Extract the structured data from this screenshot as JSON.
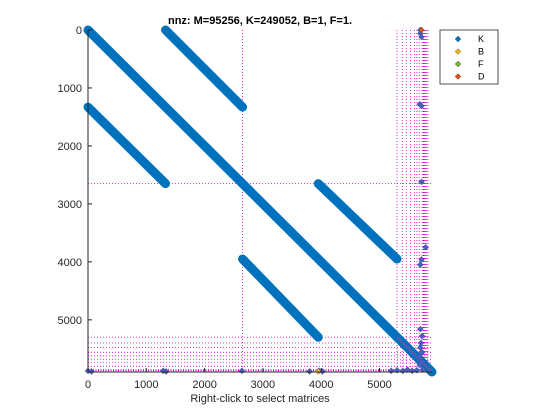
{
  "chart_data": {
    "type": "scatter",
    "title": "nnz: M=95256, K=249052, B=1, F=1.",
    "xlabel": "Right-click to select matrices",
    "ylabel": "",
    "xlim": [
      0,
      5900
    ],
    "ylim": [
      5900,
      0
    ],
    "y_axis_reversed": true,
    "xticks": [
      0,
      1000,
      2000,
      3000,
      4000,
      5000
    ],
    "yticks": [
      0,
      1000,
      2000,
      3000,
      4000,
      5000
    ],
    "grid": false,
    "legend_position": "top-right",
    "legend": [
      {
        "name": "K",
        "color": "#0072BD",
        "marker": "diamond"
      },
      {
        "name": "B",
        "color": "#EDB120",
        "marker": "diamond"
      },
      {
        "name": "F",
        "color": "#77AC30",
        "marker": "diamond"
      },
      {
        "name": "D",
        "color": "#D95319",
        "marker": "diamond"
      }
    ],
    "guide_color": "#CC00CC",
    "bands": [
      {
        "x": [
          0,
          2650
        ],
        "y": [
          0,
          2650
        ]
      },
      {
        "x": [
          1330,
          2650
        ],
        "y": [
          0,
          1330
        ]
      },
      {
        "x": [
          0,
          1330
        ],
        "y": [
          1330,
          2650
        ]
      },
      {
        "x": [
          2650,
          5300
        ],
        "y": [
          2650,
          5300
        ]
      },
      {
        "x": [
          3950,
          5300
        ],
        "y": [
          2650,
          3950
        ]
      },
      {
        "x": [
          2650,
          3950
        ],
        "y": [
          3950,
          5300
        ]
      },
      {
        "x": [
          5300,
          5900
        ],
        "y": [
          5300,
          5900
        ]
      }
    ],
    "boundary_points": [
      {
        "x": 5700,
        "y": 0
      },
      {
        "x": 5700,
        "y": 60
      },
      {
        "x": 5720,
        "y": 120
      },
      {
        "x": 5690,
        "y": 1280
      },
      {
        "x": 5720,
        "y": 1310
      },
      {
        "x": 5720,
        "y": 2620
      },
      {
        "x": 5790,
        "y": 3750
      },
      {
        "x": 5720,
        "y": 3960
      },
      {
        "x": 5700,
        "y": 4050
      },
      {
        "x": 5700,
        "y": 5160
      },
      {
        "x": 5730,
        "y": 5280
      },
      {
        "x": 5710,
        "y": 5400
      },
      {
        "x": 5700,
        "y": 5480
      },
      {
        "x": 5730,
        "y": 5560
      },
      {
        "x": 5700,
        "y": 5640
      },
      {
        "x": 5720,
        "y": 5720
      },
      {
        "x": 5690,
        "y": 5780
      },
      {
        "x": 5740,
        "y": 5860
      },
      {
        "x": 0,
        "y": 5880
      },
      {
        "x": 60,
        "y": 5890
      },
      {
        "x": 1290,
        "y": 5880
      },
      {
        "x": 1340,
        "y": 5890
      },
      {
        "x": 2640,
        "y": 5880
      },
      {
        "x": 3800,
        "y": 5890
      },
      {
        "x": 3960,
        "y": 5880
      },
      {
        "x": 4020,
        "y": 5890
      },
      {
        "x": 5200,
        "y": 5880
      },
      {
        "x": 5300,
        "y": 5870
      },
      {
        "x": 5400,
        "y": 5880
      },
      {
        "x": 5480,
        "y": 5860
      },
      {
        "x": 5560,
        "y": 5880
      },
      {
        "x": 5640,
        "y": 5870
      }
    ],
    "special_points": [
      {
        "x": 5720,
        "y": 0,
        "series": "D"
      },
      {
        "x": 3950,
        "y": 5890,
        "series": "B"
      }
    ]
  }
}
